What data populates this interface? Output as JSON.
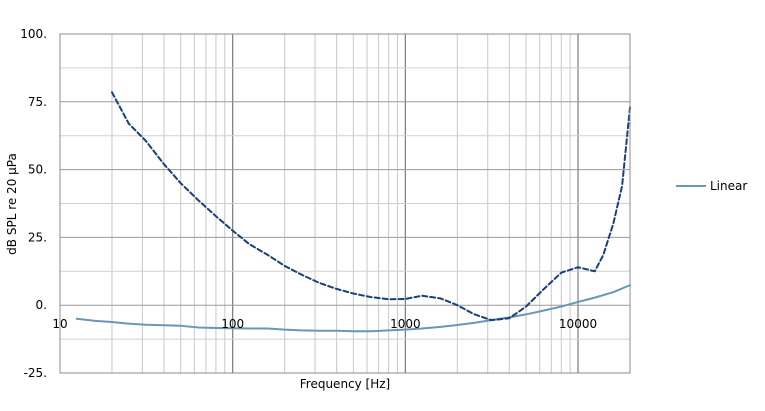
{
  "chart_data": {
    "type": "line",
    "xlabel": "Frequency [Hz]",
    "ylabel": "dB SPL re 20 µPa",
    "x_scale": "log",
    "xlim": [
      10,
      20000
    ],
    "ylim": [
      -25,
      100
    ],
    "x_ticks": [
      10,
      100,
      1000,
      10000
    ],
    "x_tick_labels": [
      "10",
      "100",
      "1000",
      "10000"
    ],
    "y_ticks": [
      100,
      75,
      50,
      25,
      0,
      -25
    ],
    "y_tick_labels": [
      "100.",
      "75.",
      "50.",
      "25.",
      "0.",
      "-25."
    ],
    "grid": true,
    "legend_position": "right",
    "series": [
      {
        "name": "Linear",
        "color": "#6a97b3",
        "style": "solid",
        "x": [
          12.5,
          16,
          20,
          25,
          31.5,
          40,
          50,
          63,
          80,
          100,
          125,
          160,
          200,
          250,
          315,
          400,
          500,
          630,
          800,
          1000,
          1250,
          1600,
          2000,
          2500,
          3150,
          4000,
          5000,
          6300,
          8000,
          10000,
          12500,
          16000,
          20000
        ],
        "y": [
          -5,
          -5.8,
          -6.2,
          -6.8,
          -7.2,
          -7.4,
          -7.6,
          -8.2,
          -8.4,
          -8.5,
          -8.6,
          -8.6,
          -9,
          -9.3,
          -9.4,
          -9.4,
          -9.6,
          -9.6,
          -9.3,
          -9,
          -8.6,
          -8,
          -7.3,
          -6.5,
          -5.5,
          -4.5,
          -3.4,
          -2,
          -0.5,
          1.2,
          2.8,
          4.8,
          7.4
        ]
      },
      {
        "color": "#1a3f7a",
        "style": "dashed",
        "x": [
          20,
          25,
          31.5,
          40,
          50,
          63,
          80,
          100,
          125,
          160,
          200,
          250,
          315,
          400,
          500,
          630,
          800,
          1000,
          1250,
          1600,
          2000,
          2500,
          3150,
          4000,
          5000,
          6300,
          8000,
          10000,
          12500,
          14000,
          16000,
          18000,
          20000
        ],
        "y": [
          78.5,
          67,
          60.5,
          52,
          45,
          38.8,
          32.8,
          27.5,
          22.5,
          18.5,
          14.5,
          11.3,
          8.3,
          6,
          4.3,
          3,
          2.2,
          2.3,
          3.5,
          2.5,
          0,
          -3.3,
          -5.5,
          -4.8,
          -0.5,
          5.8,
          12,
          14,
          12.5,
          18.5,
          30,
          44,
          73
        ]
      }
    ]
  }
}
